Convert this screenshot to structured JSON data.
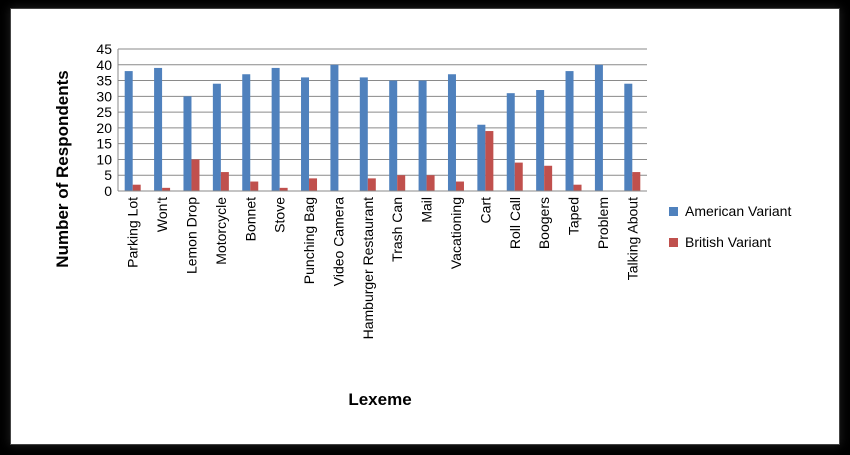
{
  "chart_data": {
    "type": "bar",
    "xlabel": "Lexeme",
    "ylabel": "Number of Respondents",
    "ylim": [
      0,
      45
    ],
    "yticks": [
      0,
      5,
      10,
      15,
      20,
      25,
      30,
      35,
      40,
      45
    ],
    "grid": true,
    "legend_position": "right",
    "categories": [
      "Parking Lot",
      "Won't",
      "Lemon Drop",
      "Motorcycle",
      "Bonnet",
      "Stove",
      "Punching Bag",
      "Video Camera",
      "Hamburger Restaurant",
      "Trash Can",
      "Mail",
      "Vacationing",
      "Cart",
      "Roll Call",
      "Boogers",
      "Taped",
      "Problem",
      "Talking About"
    ],
    "series": [
      {
        "name": "American Variant",
        "color": "#4F81BD",
        "values": [
          38,
          39,
          30,
          34,
          37,
          39,
          36,
          40,
          36,
          35,
          35,
          37,
          21,
          31,
          32,
          38,
          40,
          34
        ]
      },
      {
        "name": "British Variant",
        "color": "#C0504D",
        "values": [
          2,
          1,
          10,
          6,
          3,
          1,
          4,
          0,
          4,
          5,
          5,
          3,
          19,
          9,
          8,
          2,
          0,
          6
        ]
      }
    ]
  }
}
